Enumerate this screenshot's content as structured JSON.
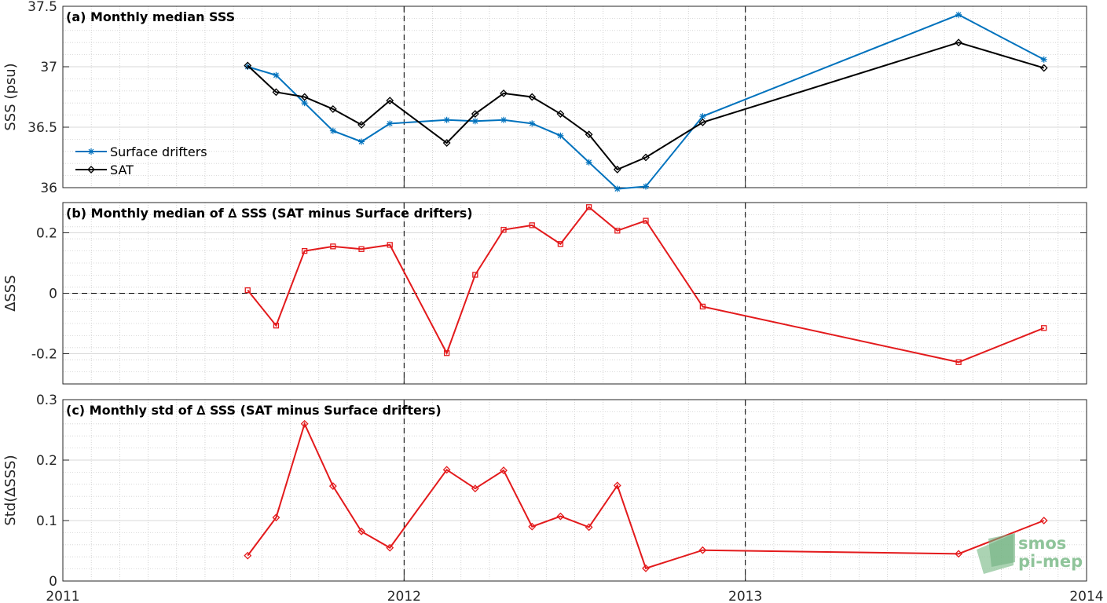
{
  "chart_data": [
    {
      "type": "line",
      "title": "(a) Monthly median SSS",
      "ylabel": "SSS (psu)",
      "xlim": [
        "2011",
        "2014"
      ],
      "ylim": [
        36,
        37.5
      ],
      "yticks": [
        "36",
        "36.5",
        "37",
        "37.5"
      ],
      "grid": true,
      "legend_position": "lower-left",
      "x": [
        "2011-07",
        "2011-08",
        "2011-09",
        "2011-10",
        "2011-11",
        "2011-12",
        "2012-02",
        "2012-03",
        "2012-04",
        "2012-05",
        "2012-06",
        "2012-07",
        "2012-08",
        "2012-09",
        "2012-11",
        "2013-08",
        "2013-11"
      ],
      "series": [
        {
          "name": "Surface drifters",
          "color": "#0072bd",
          "marker": "asterisk",
          "x": [
            "2011-07",
            "2011-08",
            "2011-09",
            "2011-10",
            "2011-11",
            "2011-12",
            "2012-02",
            "2012-03",
            "2012-04",
            "2012-05",
            "2012-06",
            "2012-07",
            "2012-08",
            "2012-09",
            "2012-11",
            "2013-08",
            "2013-11"
          ],
          "values": [
            37.0,
            36.93,
            36.7,
            36.47,
            36.38,
            36.53,
            36.56,
            36.55,
            36.56,
            36.53,
            36.43,
            36.21,
            35.99,
            36.01,
            36.59,
            37.43,
            37.06
          ]
        },
        {
          "name": "SAT",
          "color": "#000000",
          "marker": "diamond",
          "x": [
            "2011-07",
            "2011-08",
            "2011-09",
            "2011-10",
            "2011-11",
            "2011-12",
            "2012-02",
            "2012-03",
            "2012-04",
            "2012-05",
            "2012-06",
            "2012-07",
            "2012-08",
            "2012-09",
            "2012-11",
            "2013-08",
            "2013-11"
          ],
          "values": [
            37.01,
            36.79,
            36.75,
            36.65,
            36.52,
            36.72,
            36.37,
            36.61,
            36.78,
            36.75,
            36.61,
            36.44,
            36.15,
            36.25,
            36.54,
            37.2,
            36.99
          ]
        }
      ],
      "vlines": [
        "2012",
        "2013"
      ]
    },
    {
      "type": "line",
      "title": "(b) Monthly median of ∆ SSS (SAT minus Surface drifters)",
      "ylabel": "∆SSS",
      "ylim": [
        -0.3,
        0.3
      ],
      "yticks": [
        "-0.2",
        "0",
        "0.2"
      ],
      "grid": true,
      "hline": 0,
      "series": [
        {
          "color": "#e31a1c",
          "marker": "square",
          "x": [
            "2011-07",
            "2011-08",
            "2011-09",
            "2011-10",
            "2011-11",
            "2011-12",
            "2012-02",
            "2012-03",
            "2012-04",
            "2012-05",
            "2012-06",
            "2012-07",
            "2012-08",
            "2012-09",
            "2012-11",
            "2013-08",
            "2013-11"
          ],
          "values": [
            0.01,
            -0.107,
            0.14,
            0.155,
            0.146,
            0.16,
            -0.198,
            0.061,
            0.21,
            0.225,
            0.163,
            0.285,
            0.207,
            0.24,
            -0.044,
            -0.228,
            -0.115
          ]
        }
      ],
      "vlines": [
        "2012",
        "2013"
      ]
    },
    {
      "type": "line",
      "title": "(c) Monthly std of ∆ SSS (SAT minus Surface drifters)",
      "ylabel": "Std(∆SSS)",
      "ylim": [
        0,
        0.3
      ],
      "yticks": [
        "0",
        "0.1",
        "0.2",
        "0.3"
      ],
      "grid": true,
      "series": [
        {
          "color": "#e31a1c",
          "marker": "diamond",
          "x": [
            "2011-07",
            "2011-08",
            "2011-09",
            "2011-10",
            "2011-11",
            "2011-12",
            "2012-02",
            "2012-03",
            "2012-04",
            "2012-05",
            "2012-06",
            "2012-07",
            "2012-08",
            "2012-09",
            "2012-11",
            "2013-08",
            "2013-11"
          ],
          "values": [
            0.042,
            0.105,
            0.26,
            0.157,
            0.082,
            0.055,
            0.184,
            0.153,
            0.183,
            0.09,
            0.107,
            0.089,
            0.158,
            0.021,
            0.051,
            0.045,
            0.1
          ]
        }
      ],
      "vlines": [
        "2012",
        "2013"
      ],
      "xticks": [
        "2011",
        "2012",
        "2013",
        "2014"
      ]
    }
  ],
  "logo": {
    "line1": "smos",
    "line2": "pi-mep",
    "color": "#8fc49a"
  }
}
